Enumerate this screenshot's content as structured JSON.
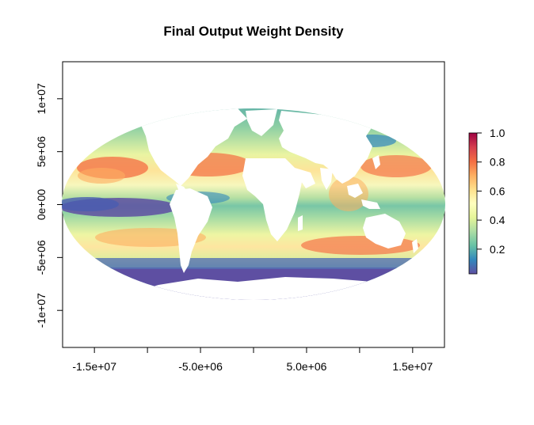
{
  "title": "Final Output Weight Density",
  "x_axis": {
    "ticks": [
      {
        "value": -15000000,
        "label": "-1.5e+07"
      },
      {
        "value": -10000000,
        "label": ""
      },
      {
        "value": -5000000,
        "label": "-5.0e+06"
      },
      {
        "value": 0,
        "label": ""
      },
      {
        "value": 5000000,
        "label": "5.0e+06"
      },
      {
        "value": 10000000,
        "label": ""
      },
      {
        "value": 15000000,
        "label": "1.5e+07"
      }
    ],
    "range": [
      -18000000,
      18000000
    ]
  },
  "y_axis": {
    "ticks": [
      {
        "value": 10000000,
        "label": "1e+07"
      },
      {
        "value": 5000000,
        "label": "5e+06"
      },
      {
        "value": 0,
        "label": "0e+00"
      },
      {
        "value": -5000000,
        "label": "-5e+06"
      },
      {
        "value": -10000000,
        "label": "-1e+07"
      }
    ],
    "range": [
      -13500000,
      13500000
    ]
  },
  "projection": "mollweide",
  "legend": {
    "placement": "right",
    "range": [
      0.03,
      1.0
    ],
    "ticks": [
      {
        "value": 1.0,
        "label": "1.0"
      },
      {
        "value": 0.8,
        "label": "0.8"
      },
      {
        "value": 0.6,
        "label": "0.6"
      },
      {
        "value": 0.4,
        "label": "0.4"
      },
      {
        "value": 0.2,
        "label": "0.2"
      }
    ],
    "palette": [
      "#5E4FA2",
      "#3288BD",
      "#66C2A5",
      "#ABDDA4",
      "#E6F598",
      "#FFFFBF",
      "#FEE08B",
      "#FDAE61",
      "#F46D43",
      "#D53E4F",
      "#9E0142"
    ]
  },
  "land_color": "#ffffff"
}
